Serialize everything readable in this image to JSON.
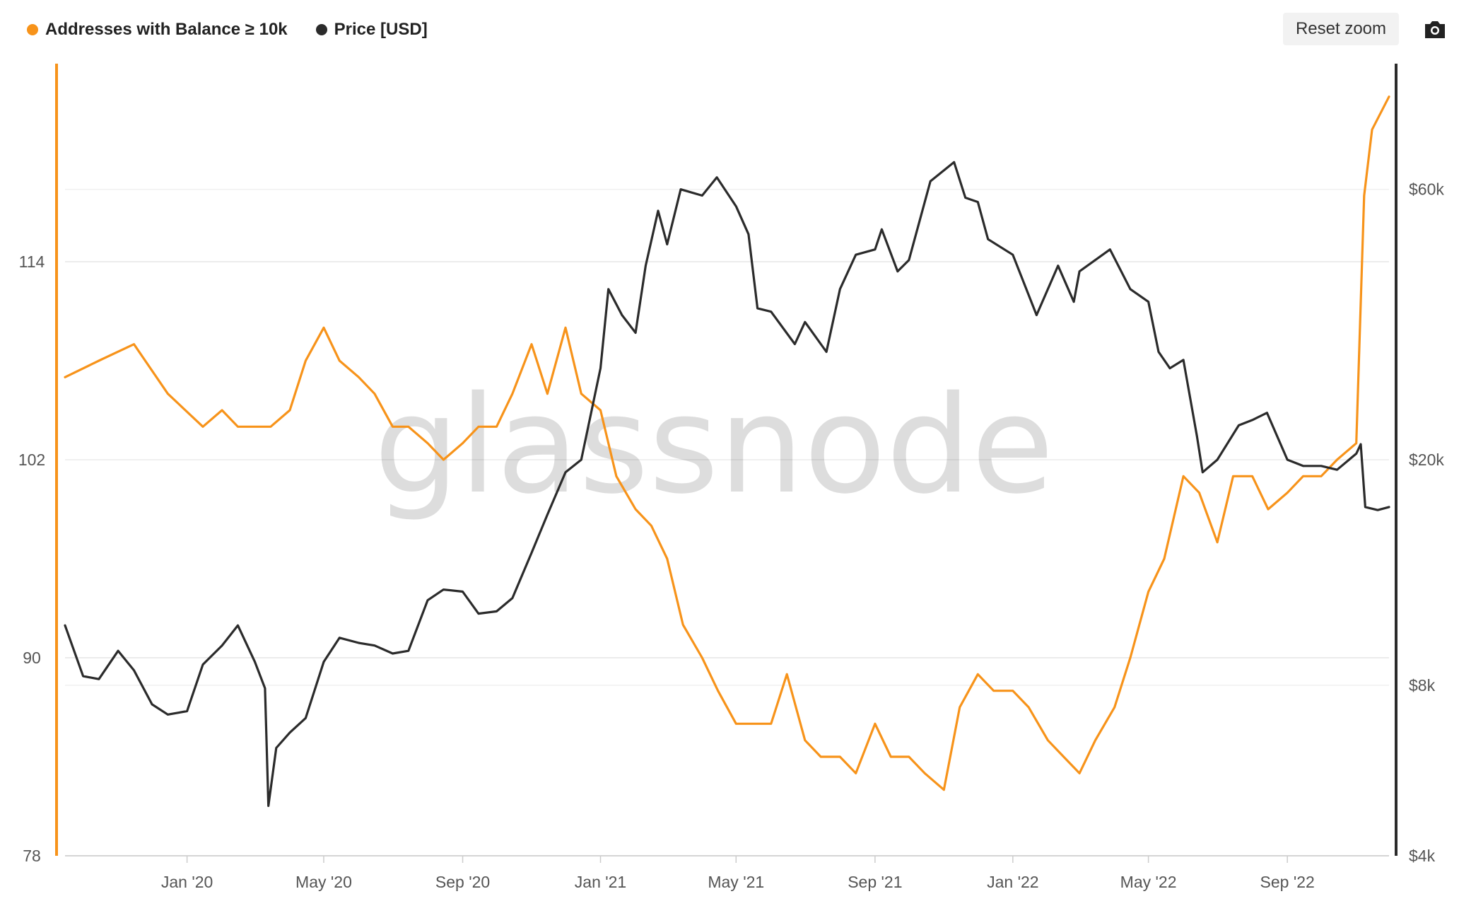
{
  "toolbar": {
    "reset_zoom": "Reset zoom",
    "camera_icon": "camera-icon"
  },
  "watermark": "glassnode",
  "colors": {
    "addresses": "#f7931a",
    "price": "#2b2b2b",
    "grid": "#e6e6e6"
  },
  "chart_data": {
    "type": "line",
    "title": "",
    "legend": [
      "Addresses with Balance ≥ 10k",
      "Price [USD]"
    ],
    "legend_position": "top-left",
    "grid": true,
    "x_ticks": [
      "Jan '20",
      "May '20",
      "Sep '20",
      "Jan '21",
      "May '21",
      "Sep '21",
      "Jan '22",
      "May '22",
      "Sep '22"
    ],
    "x_tick_dates": [
      "2020-01-01",
      "2020-05-01",
      "2020-09-01",
      "2021-01-01",
      "2021-05-01",
      "2021-09-01",
      "2022-01-01",
      "2022-05-01",
      "2022-09-01"
    ],
    "xlim": [
      "2019-09-15",
      "2022-11-30"
    ],
    "y_left": {
      "label": "",
      "ticks": [
        "114",
        "102",
        "90",
        "78"
      ],
      "tick_values": [
        114,
        102,
        90,
        78
      ],
      "lim": [
        78,
        126
      ]
    },
    "y_right": {
      "label": "",
      "scale": "log",
      "ticks": [
        "$60k",
        "$20k",
        "$8k",
        "$4k"
      ],
      "tick_values": [
        60000,
        20000,
        8000,
        4000
      ],
      "lim": [
        4000,
        100000
      ]
    },
    "series": [
      {
        "name": "Addresses with Balance ≥ 10k",
        "axis": "left",
        "color": "#f7931a",
        "x": [
          "2019-09-15",
          "2019-10-15",
          "2019-11-15",
          "2019-12-15",
          "2020-01-15",
          "2020-02-01",
          "2020-02-15",
          "2020-03-01",
          "2020-03-15",
          "2020-04-01",
          "2020-04-15",
          "2020-05-01",
          "2020-05-15",
          "2020-06-01",
          "2020-06-15",
          "2020-07-01",
          "2020-07-15",
          "2020-08-01",
          "2020-08-15",
          "2020-09-01",
          "2020-09-15",
          "2020-10-01",
          "2020-10-15",
          "2020-11-01",
          "2020-11-15",
          "2020-12-01",
          "2020-12-15",
          "2021-01-01",
          "2021-01-15",
          "2021-02-01",
          "2021-02-15",
          "2021-03-01",
          "2021-03-15",
          "2021-04-01",
          "2021-04-15",
          "2021-05-01",
          "2021-05-15",
          "2021-06-01",
          "2021-06-15",
          "2021-07-01",
          "2021-07-15",
          "2021-08-01",
          "2021-08-15",
          "2021-09-01",
          "2021-09-15",
          "2021-10-01",
          "2021-10-15",
          "2021-11-01",
          "2021-11-15",
          "2021-12-01",
          "2021-12-15",
          "2022-01-01",
          "2022-01-15",
          "2022-02-01",
          "2022-02-15",
          "2022-03-01",
          "2022-03-15",
          "2022-04-01",
          "2022-04-15",
          "2022-05-01",
          "2022-05-15",
          "2022-06-01",
          "2022-06-15",
          "2022-07-01",
          "2022-07-15",
          "2022-08-01",
          "2022-08-15",
          "2022-09-01",
          "2022-09-15",
          "2022-10-01",
          "2022-10-15",
          "2022-11-01",
          "2022-11-08",
          "2022-11-15",
          "2022-11-30"
        ],
        "values": [
          107,
          108,
          109,
          106,
          104,
          105,
          104,
          104,
          104,
          105,
          108,
          110,
          108,
          107,
          106,
          104,
          104,
          103,
          102,
          103,
          104,
          104,
          106,
          109,
          106,
          110,
          106,
          105,
          101,
          99,
          98,
          96,
          92,
          90,
          88,
          86,
          86,
          86,
          89,
          85,
          84,
          84,
          83,
          86,
          84,
          84,
          83,
          82,
          87,
          89,
          88,
          88,
          87,
          85,
          84,
          83,
          85,
          87,
          90,
          94,
          96,
          101,
          100,
          97,
          101,
          101,
          99,
          100,
          101,
          101,
          102,
          103,
          118,
          122,
          124
        ]
      },
      {
        "name": "Price [USD]",
        "axis": "right",
        "color": "#2b2b2b",
        "x": [
          "2019-09-15",
          "2019-10-01",
          "2019-10-15",
          "2019-11-01",
          "2019-11-15",
          "2019-12-01",
          "2019-12-15",
          "2020-01-01",
          "2020-01-15",
          "2020-02-01",
          "2020-02-15",
          "2020-03-01",
          "2020-03-10",
          "2020-03-13",
          "2020-03-20",
          "2020-04-01",
          "2020-04-15",
          "2020-05-01",
          "2020-05-15",
          "2020-06-01",
          "2020-06-15",
          "2020-07-01",
          "2020-07-15",
          "2020-08-01",
          "2020-08-15",
          "2020-09-01",
          "2020-09-15",
          "2020-10-01",
          "2020-10-15",
          "2020-11-01",
          "2020-11-15",
          "2020-12-01",
          "2020-12-15",
          "2021-01-01",
          "2021-01-08",
          "2021-01-20",
          "2021-02-01",
          "2021-02-10",
          "2021-02-21",
          "2021-03-01",
          "2021-03-13",
          "2021-04-01",
          "2021-04-14",
          "2021-05-01",
          "2021-05-12",
          "2021-05-20",
          "2021-06-01",
          "2021-06-22",
          "2021-07-01",
          "2021-07-20",
          "2021-08-01",
          "2021-08-15",
          "2021-09-01",
          "2021-09-07",
          "2021-09-21",
          "2021-10-01",
          "2021-10-20",
          "2021-11-10",
          "2021-11-20",
          "2021-12-01",
          "2021-12-10",
          "2022-01-01",
          "2022-01-22",
          "2022-02-10",
          "2022-02-24",
          "2022-03-01",
          "2022-03-28",
          "2022-04-15",
          "2022-05-01",
          "2022-05-10",
          "2022-05-20",
          "2022-06-01",
          "2022-06-13",
          "2022-06-18",
          "2022-07-01",
          "2022-07-20",
          "2022-08-01",
          "2022-08-14",
          "2022-09-01",
          "2022-09-15",
          "2022-10-01",
          "2022-10-15",
          "2022-11-01",
          "2022-11-05",
          "2022-11-09",
          "2022-11-20",
          "2022-11-30"
        ],
        "values": [
          10200,
          8300,
          8200,
          9200,
          8500,
          7400,
          7100,
          7200,
          8700,
          9400,
          10200,
          8800,
          7900,
          4900,
          6200,
          6600,
          7000,
          8800,
          9700,
          9500,
          9400,
          9100,
          9200,
          11300,
          11800,
          11700,
          10700,
          10800,
          11400,
          13700,
          16000,
          19000,
          20000,
          29000,
          40000,
          36000,
          33500,
          44000,
          55000,
          48000,
          60000,
          58500,
          63000,
          56000,
          50000,
          37000,
          36500,
          32000,
          35000,
          31000,
          40000,
          46000,
          47000,
          51000,
          43000,
          45000,
          62000,
          67000,
          58000,
          57000,
          49000,
          46000,
          36000,
          44000,
          38000,
          43000,
          47000,
          40000,
          38000,
          31000,
          29000,
          30000,
          22000,
          19000,
          20000,
          23000,
          23500,
          24200,
          20000,
          19500,
          19500,
          19200,
          20500,
          21300,
          16500,
          16300,
          16500
        ]
      }
    ]
  }
}
